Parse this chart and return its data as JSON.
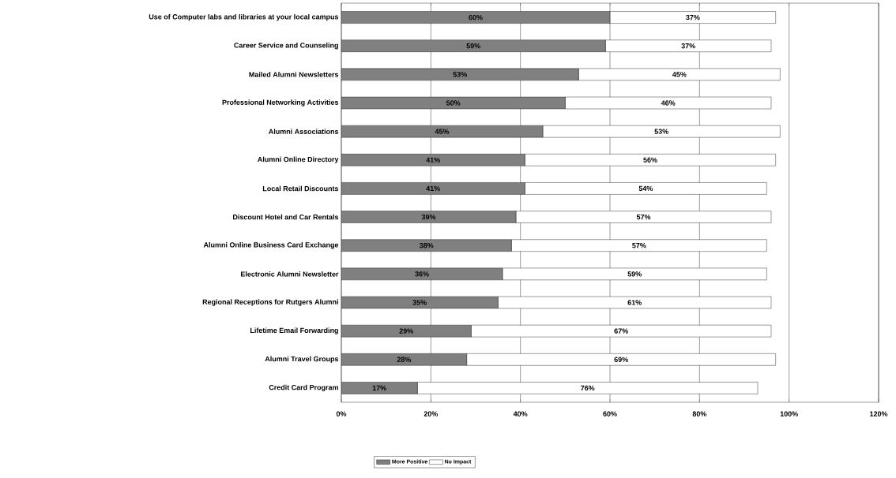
{
  "chart_data": {
    "type": "bar",
    "orientation": "horizontal",
    "stacked": true,
    "categories": [
      "Use of Computer labs and libraries at your local campus",
      "Career Service and Counseling",
      "Mailed Alumni Newsletters",
      "Professional Networking Activities",
      "Alumni Associations",
      "Alumni Online Directory",
      "Local Retail Discounts",
      "Discount Hotel and Car Rentals",
      "Alumni Online Business Card Exchange",
      "Electronic Alumni Newsletter",
      "Regional Receptions for Rutgers Alumni",
      "Lifetime Email Forwarding",
      "Alumni Travel Groups",
      "Credit Card Program"
    ],
    "series": [
      {
        "name": "More Positive",
        "color": "#808080",
        "values": [
          60,
          59,
          53,
          50,
          45,
          41,
          41,
          39,
          38,
          36,
          35,
          29,
          28,
          17
        ],
        "value_labels": [
          "60%",
          "59%",
          "53%",
          "50%",
          "45%",
          "41%",
          "41%",
          "39%",
          "38%",
          "36%",
          "35%",
          "29%",
          "28%",
          "17%"
        ]
      },
      {
        "name": "No Impact",
        "color": "#ffffff",
        "values": [
          37,
          37,
          45,
          46,
          53,
          56,
          54,
          57,
          57,
          59,
          61,
          67,
          69,
          76
        ],
        "value_labels": [
          "37%",
          "37%",
          "45%",
          "46%",
          "53%",
          "56%",
          "54%",
          "57%",
          "57%",
          "59%",
          "61%",
          "67%",
          "69%",
          "76%"
        ]
      }
    ],
    "xlim": [
      0,
      120
    ],
    "xticks": [
      {
        "value": 0,
        "label": "0%"
      },
      {
        "value": 20,
        "label": "20%"
      },
      {
        "value": 40,
        "label": "40%"
      },
      {
        "value": 60,
        "label": "60%"
      },
      {
        "value": 80,
        "label": "80%"
      },
      {
        "value": 100,
        "label": "100%"
      },
      {
        "value": 120,
        "label": "120%"
      }
    ],
    "grid": "x",
    "legend": "bottom"
  }
}
